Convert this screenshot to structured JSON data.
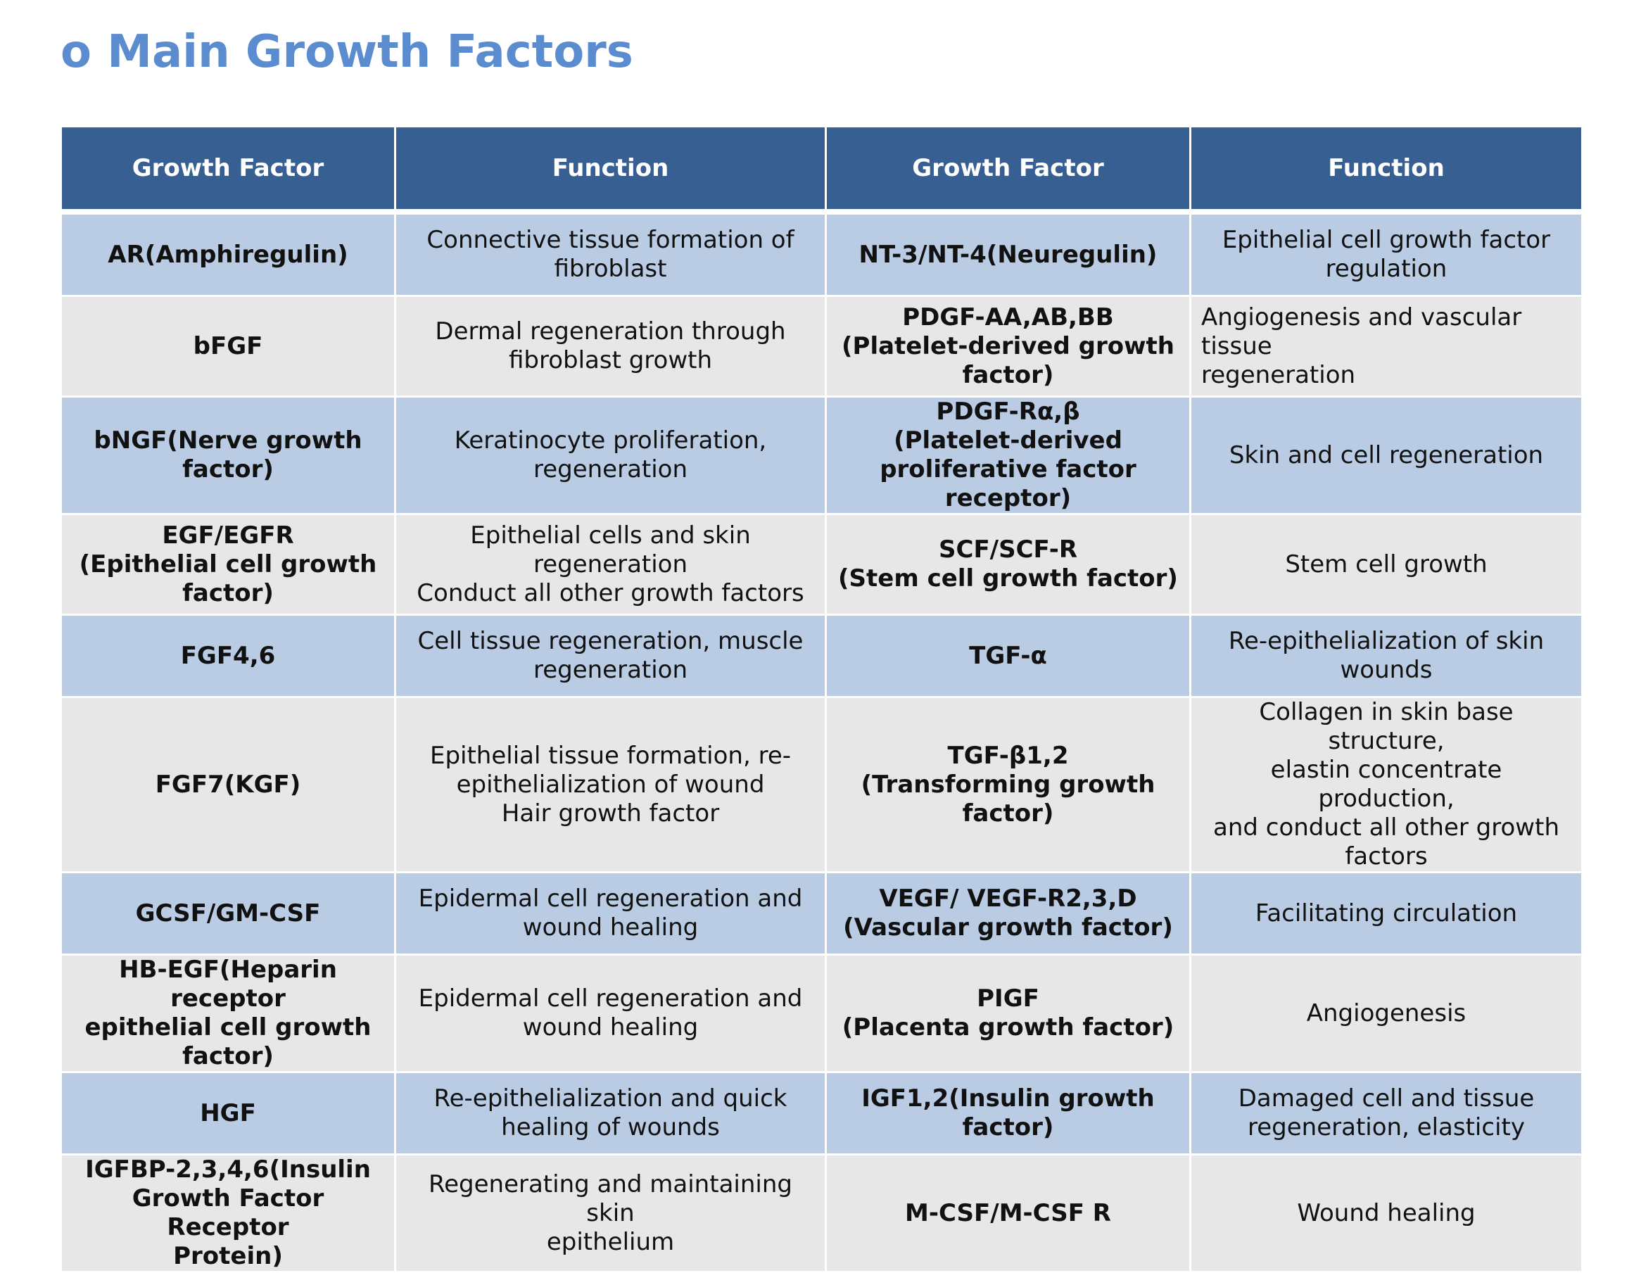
{
  "title": "o Main Growth Factors",
  "table": {
    "headers": [
      "Growth Factor",
      "Function",
      "Growth Factor",
      "Function"
    ],
    "rows": [
      {
        "f1": [
          "AR(Amphiregulin)"
        ],
        "fn1": [
          "Connective tissue formation of",
          "fibroblast"
        ],
        "f2": [
          "NT-3/NT-4(Neuregulin)"
        ],
        "fn2": [
          "Epithelial cell growth factor",
          "regulation"
        ]
      },
      {
        "f1": [
          "bFGF"
        ],
        "fn1": [
          "Dermal regeneration through",
          "fibroblast growth"
        ],
        "f2": [
          "PDGF-AA,AB,BB",
          "(Platelet-derived growth",
          "factor)"
        ],
        "fn2": [
          "Angiogenesis and vascular tissue",
          "regeneration"
        ]
      },
      {
        "f1": [
          "bNGF(Nerve growth",
          "factor)"
        ],
        "fn1": [
          "Keratinocyte proliferation,",
          "regeneration"
        ],
        "f2": [
          "PDGF-Rα,β",
          "(Platelet-derived",
          "proliferative factor receptor)"
        ],
        "fn2": [
          "Skin and cell regeneration"
        ]
      },
      {
        "f1": [
          "EGF/EGFR",
          "(Epithelial cell growth",
          "factor)"
        ],
        "fn1": [
          "Epithelial cells and skin",
          "regeneration",
          "Conduct all other growth factors"
        ],
        "f2": [
          "SCF/SCF-R",
          "(Stem cell growth factor)"
        ],
        "fn2": [
          "Stem cell growth"
        ]
      },
      {
        "f1": [
          "FGF4,6"
        ],
        "fn1": [
          "Cell tissue regeneration, muscle",
          "regeneration"
        ],
        "f2": [
          "TGF-α"
        ],
        "fn2": [
          "Re-epithelialization of skin",
          "wounds"
        ]
      },
      {
        "f1": [
          "FGF7(KGF)"
        ],
        "fn1": [
          "Epithelial tissue formation, re-",
          "epithelialization of wound",
          "Hair growth factor"
        ],
        "f2": [
          "TGF-β1,2",
          "(Transforming growth factor)"
        ],
        "fn2": [
          "Collagen in skin base structure,",
          "elastin concentrate production,",
          "and conduct all other growth",
          "factors"
        ]
      },
      {
        "f1": [
          "GCSF/GM-CSF"
        ],
        "fn1": [
          "Epidermal cell regeneration and",
          "wound healing"
        ],
        "f2": [
          "VEGF/ VEGF-R2,3,D",
          "(Vascular growth factor)"
        ],
        "fn2": [
          "Facilitating circulation"
        ]
      },
      {
        "f1": [
          "HB-EGF(Heparin receptor",
          "epithelial cell growth",
          "factor)"
        ],
        "fn1": [
          "Epidermal cell regeneration and",
          "wound healing"
        ],
        "f2": [
          "PIGF",
          "(Placenta growth factor)"
        ],
        "fn2": [
          "Angiogenesis"
        ]
      },
      {
        "f1": [
          "HGF"
        ],
        "fn1": [
          "Re-epithelialization and quick",
          "healing of wounds"
        ],
        "f2": [
          "IGF1,2(Insulin growth factor)"
        ],
        "fn2": [
          "Damaged cell and tissue",
          "regeneration, elasticity"
        ]
      },
      {
        "f1": [
          "IGFBP-2,3,4,6(Insulin",
          "Growth Factor Receptor",
          "Protein)"
        ],
        "fn1": [
          "Regenerating and maintaining skin",
          "epithelium"
        ],
        "f2": [
          "M-CSF/M-CSF R"
        ],
        "fn2": [
          "Wound healing"
        ]
      }
    ]
  }
}
